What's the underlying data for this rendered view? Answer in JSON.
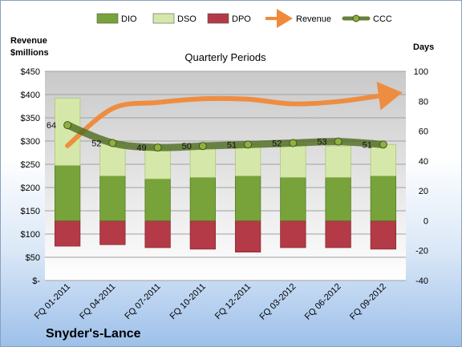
{
  "chart_data": {
    "type": "bar",
    "subtitle": "Quarterly Periods",
    "footer": "Snyder's-Lance",
    "left_axis_label": [
      "Revenue",
      "$millions"
    ],
    "right_axis_label": "Days",
    "categories": [
      "FQ 01-2011",
      "FQ 04-2011",
      "FQ 07-2011",
      "FQ 10-2011",
      "FQ 12-2011",
      "FQ 03-2012",
      "FQ 06-2012",
      "FQ 09-2012"
    ],
    "left_ticks": [
      "$-",
      "$50",
      "$100",
      "$150",
      "$200",
      "$250",
      "$300",
      "$350",
      "$400",
      "$450"
    ],
    "left_ylim": [
      0,
      450
    ],
    "right_ticks": [
      "-40",
      "-20",
      "0",
      "20",
      "40",
      "60",
      "80",
      "100"
    ],
    "right_ylim": [
      -40,
      100
    ],
    "legend_position": "top",
    "series": [
      {
        "name": "DIO",
        "kind": "stacked-bar",
        "color": "#77a33a",
        "values": [
          37,
          30,
          28,
          29,
          30,
          29,
          29,
          30
        ]
      },
      {
        "name": "DSO",
        "kind": "stacked-bar",
        "color": "#d6e8a9",
        "values": [
          45,
          22,
          21,
          20,
          21,
          22,
          21,
          21
        ]
      },
      {
        "name": "DPO",
        "kind": "negative-bar",
        "color": "#b33a46",
        "values": [
          -17,
          -16,
          -18,
          -19,
          -21,
          -18,
          -18,
          -19
        ]
      },
      {
        "name": "Revenue",
        "kind": "line",
        "color": "#f08a3a",
        "values": [
          290,
          370,
          383,
          391,
          390,
          380,
          385,
          400
        ]
      },
      {
        "name": "CCC",
        "kind": "line",
        "color": "#4d6a1f",
        "values": [
          64,
          52,
          49,
          50,
          51,
          52,
          53,
          51
        ]
      }
    ],
    "ccc_labels": [
      "64",
      "52",
      "49",
      "50",
      "51",
      "52",
      "53",
      "51"
    ]
  }
}
